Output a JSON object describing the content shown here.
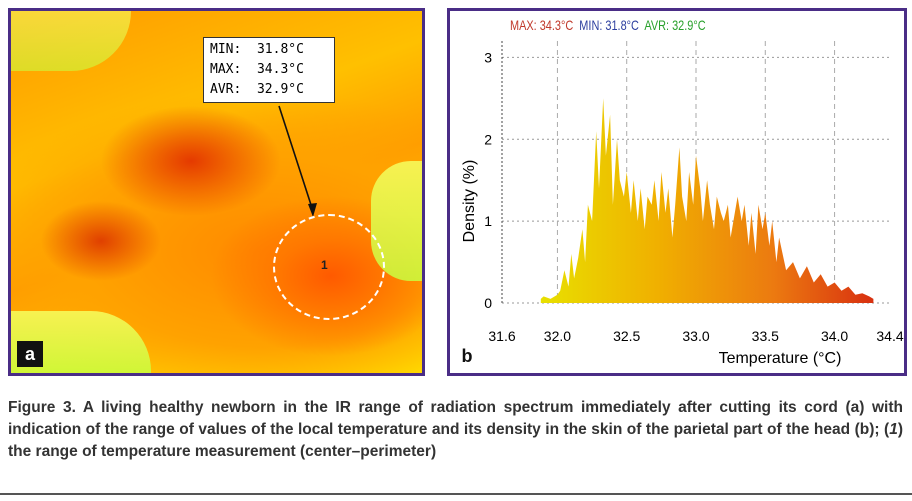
{
  "panel_a": {
    "label": "a",
    "annotation": {
      "min": "MIN:  31.8°C",
      "max": "MAX:  34.3°C",
      "avr": "AVR:  32.9°C"
    },
    "spot_label": "1"
  },
  "panel_b": {
    "label": "b",
    "legend": {
      "max": "MAX: 34.3°C",
      "min": "MIN: 31.8°C",
      "avr": "AVR: 32.9°C",
      "colors": {
        "max": "#c0392b",
        "min": "#2c3e9e",
        "avr": "#27a02a"
      }
    }
  },
  "chart_data": {
    "type": "area",
    "title": "",
    "xlabel": "Temperature (°C)",
    "ylabel": "Density (%)",
    "xlim": [
      31.6,
      34.4
    ],
    "ylim": [
      0,
      3.2
    ],
    "xticks": [
      "31.6",
      "32.0",
      "32.5",
      "33.0",
      "33.5",
      "34.0",
      "34.4"
    ],
    "yticks": [
      "0",
      "1",
      "2",
      "3"
    ],
    "grid": true,
    "x": [
      31.88,
      31.9,
      31.95,
      32.0,
      32.02,
      32.05,
      32.08,
      32.1,
      32.12,
      32.15,
      32.18,
      32.2,
      32.22,
      32.25,
      32.28,
      32.3,
      32.33,
      32.35,
      32.38,
      32.4,
      32.43,
      32.45,
      32.48,
      32.5,
      32.53,
      32.55,
      32.58,
      32.6,
      32.63,
      32.65,
      32.68,
      32.7,
      32.73,
      32.75,
      32.78,
      32.8,
      32.83,
      32.85,
      32.88,
      32.9,
      32.93,
      32.95,
      32.98,
      33.0,
      33.03,
      33.05,
      33.08,
      33.1,
      33.13,
      33.15,
      33.18,
      33.2,
      33.23,
      33.25,
      33.28,
      33.3,
      33.33,
      33.35,
      33.38,
      33.4,
      33.43,
      33.45,
      33.48,
      33.5,
      33.53,
      33.55,
      33.58,
      33.6,
      33.65,
      33.7,
      33.75,
      33.8,
      33.85,
      33.9,
      33.95,
      34.0,
      34.05,
      34.1,
      34.15,
      34.2,
      34.25,
      34.28
    ],
    "y": [
      0.05,
      0.08,
      0.05,
      0.1,
      0.15,
      0.4,
      0.2,
      0.6,
      0.3,
      0.55,
      0.9,
      0.5,
      1.2,
      1.0,
      2.1,
      1.4,
      2.5,
      1.8,
      2.3,
      1.2,
      2.0,
      1.5,
      1.3,
      1.6,
      1.1,
      1.5,
      1.0,
      1.4,
      0.9,
      1.3,
      1.2,
      1.5,
      1.0,
      1.6,
      1.1,
      1.4,
      0.8,
      1.2,
      1.9,
      1.3,
      1.0,
      1.6,
      1.2,
      1.8,
      1.4,
      1.0,
      1.5,
      1.2,
      0.9,
      1.3,
      1.1,
      1.0,
      1.2,
      0.8,
      1.1,
      1.3,
      1.0,
      1.2,
      0.7,
      1.1,
      0.6,
      1.2,
      0.9,
      1.1,
      0.7,
      1.0,
      0.5,
      0.8,
      0.4,
      0.5,
      0.3,
      0.45,
      0.25,
      0.35,
      0.2,
      0.25,
      0.15,
      0.2,
      0.1,
      0.12,
      0.08,
      0.05
    ]
  },
  "caption": {
    "part1": "Figure 3. A living healthy newborn in the IR range of radiation spectrum immediately after cutting its cord (a) with indication of the range of values of the local temperature and its density in the skin of the parietal part of the head (b); (",
    "num": "1",
    "part2": ") the range of temperature measurement (center–perimeter)"
  }
}
